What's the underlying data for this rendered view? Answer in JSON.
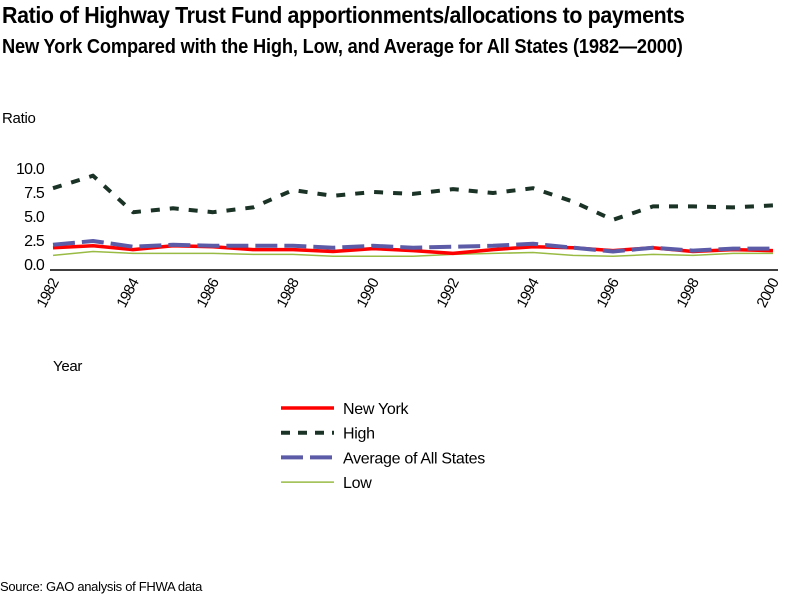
{
  "header": {
    "title": "Ratio of Highway Trust Fund apportionments/allocations to payments",
    "subtitle": "New York Compared with the High, Low, and Average for All States (1982—2000)"
  },
  "footer": {
    "source": "Source: GAO analysis of FHWA data"
  },
  "chart_data": {
    "type": "line",
    "title": "Ratio of Highway Trust Fund apportionments/allocations to payments",
    "subtitle": "New York Compared with the High, Low, and Average for All States (1982—2000)",
    "xlabel": "Year",
    "ylabel": "Ratio",
    "x": [
      1982,
      1983,
      1984,
      1985,
      1986,
      1987,
      1988,
      1989,
      1990,
      1991,
      1992,
      1993,
      1994,
      1995,
      1996,
      1997,
      1998,
      1999,
      2000
    ],
    "xticks": [
      "1982",
      "1984",
      "1986",
      "1988",
      "1990",
      "1992",
      "1994",
      "1996",
      "1998",
      "2000"
    ],
    "yticks": [
      "0.0",
      "2.5",
      "5.0",
      "7.5",
      "10.0"
    ],
    "ylim": [
      0,
      10
    ],
    "grid": false,
    "legend_position": "bottom-center",
    "series": [
      {
        "name": "New York",
        "style": "solid",
        "color": "#ff0000",
        "values": [
          1.7,
          1.9,
          1.5,
          1.9,
          1.8,
          1.5,
          1.5,
          1.3,
          1.6,
          1.4,
          1.1,
          1.5,
          1.8,
          1.7,
          1.4,
          1.7,
          1.3,
          1.5,
          1.4
        ]
      },
      {
        "name": "High",
        "style": "short-dash",
        "color": "#1a3326",
        "values": [
          7.9,
          9.2,
          5.4,
          5.8,
          5.4,
          5.9,
          7.7,
          7.1,
          7.5,
          7.3,
          7.8,
          7.4,
          7.9,
          6.5,
          4.6,
          6.0,
          6.0,
          5.9,
          6.1
        ]
      },
      {
        "name": "Average of All States",
        "style": "long-dash",
        "color": "#5b5ba8",
        "values": [
          2.0,
          2.4,
          1.8,
          2.0,
          1.9,
          1.9,
          1.9,
          1.7,
          1.9,
          1.7,
          1.8,
          1.9,
          2.1,
          1.7,
          1.3,
          1.7,
          1.4,
          1.6,
          1.6
        ]
      },
      {
        "name": "Low",
        "style": "thin-solid",
        "color": "#99bb44",
        "values": [
          0.9,
          1.3,
          1.1,
          1.1,
          1.1,
          1.0,
          1.0,
          0.8,
          0.8,
          0.8,
          1.0,
          1.1,
          1.2,
          0.9,
          0.8,
          1.0,
          0.9,
          1.1,
          1.1
        ]
      }
    ]
  }
}
